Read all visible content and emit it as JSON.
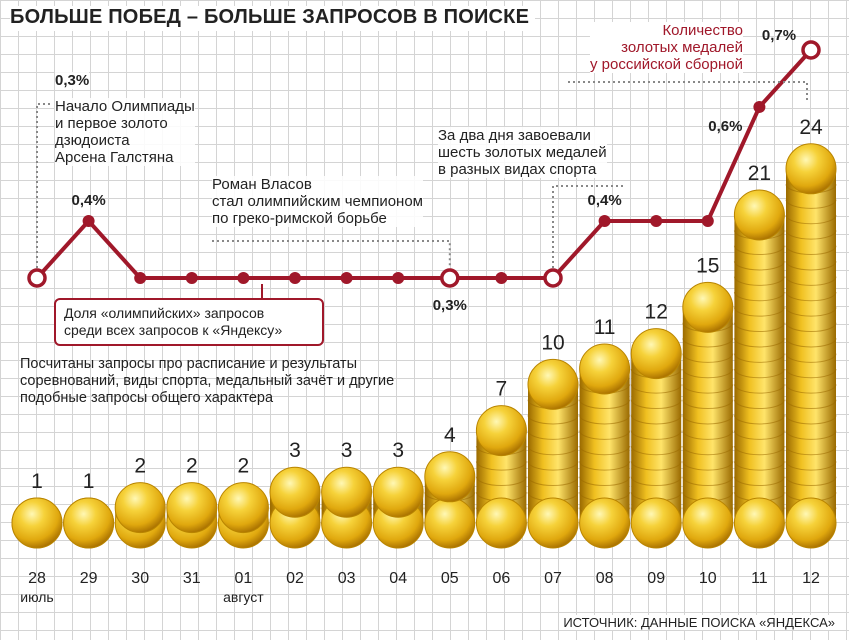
{
  "title": "БОЛЬШЕ ПОБЕД – БОЛЬШЕ ЗАПРОСОВ В ПОИСКЕ",
  "source": "ИСТОЧНИК: ДАННЫЕ ПОИСКА «ЯНДЕКСА»",
  "annotations": {
    "start_pct": "0,3%",
    "start": [
      "Начало Олимпиады",
      "и первое золото",
      "дзюдоиста",
      "Арсена Галстяна"
    ],
    "vlasov": [
      "Роман Власов",
      "стал олимпийским чемпионом",
      "по греко-римской борьбе"
    ],
    "six_golds": [
      "За два дня завоевали",
      "шесть золотых медалей",
      "в разных видах спорта"
    ],
    "line_label": [
      "Доля «олимпийских» запросов",
      "среди всех запросов к «Яндексу»"
    ],
    "medals_label": [
      "Количество",
      "золотых медалей",
      "у российской сборной"
    ],
    "explanation": [
      "Посчитаны запросы про расписание и результаты",
      "соревнований, виды спорта, медальный зачёт и другие",
      "подобные запросы общего характера"
    ]
  },
  "colors": {
    "line": "#a0182a",
    "coin_light": "#fff6a8",
    "coin_mid": "#f2c318",
    "coin_dark": "#b07800"
  },
  "chart_data": {
    "type": "bar",
    "categories": [
      "28",
      "29",
      "30",
      "31",
      "01",
      "02",
      "03",
      "04",
      "05",
      "06",
      "07",
      "08",
      "09",
      "10",
      "11",
      "12"
    ],
    "month_labels": {
      "0": "июль",
      "4": "август"
    },
    "series": [
      {
        "name": "Количество золотых медалей у российской сборной",
        "values": [
          1,
          1,
          2,
          2,
          2,
          3,
          3,
          3,
          4,
          7,
          10,
          11,
          12,
          15,
          21,
          24
        ]
      },
      {
        "name": "Доля «олимпийских» запросов среди всех запросов к «Яндексу»",
        "values": [
          0.3,
          0.4,
          0.3,
          0.3,
          0.3,
          0.3,
          0.3,
          0.3,
          0.3,
          0.3,
          0.3,
          0.4,
          0.4,
          0.4,
          0.6,
          0.7
        ]
      }
    ],
    "line_labels": {
      "0": "",
      "1": "0,4%",
      "8": "0,3%",
      "11": "0,4%",
      "14": "0,6%",
      "15": "0,7%"
    },
    "line_hollow_points": [
      0,
      8,
      10,
      15
    ]
  }
}
